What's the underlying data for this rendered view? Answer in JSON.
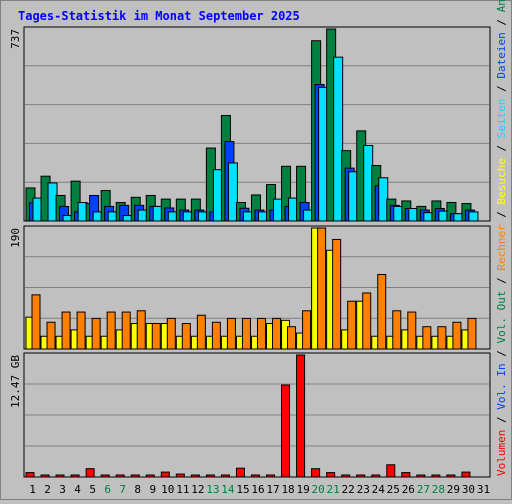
{
  "chart_data": [
    {
      "type": "bar",
      "title": "Tages-Statistik im Monat September 2025",
      "ymax_label": "737",
      "ylim": [
        0,
        737
      ],
      "categories": [
        "1",
        "2",
        "3",
        "4",
        "5",
        "6",
        "7",
        "8",
        "9",
        "10",
        "11",
        "12",
        "13",
        "14",
        "15",
        "16",
        "17",
        "18",
        "19",
        "20",
        "21",
        "22",
        "23",
        "24",
        "25",
        "26",
        "27",
        "28",
        "29",
        "30",
        "31"
      ],
      "weekend_days": [
        "6",
        "7",
        "13",
        "14",
        "20",
        "21",
        "27",
        "28"
      ],
      "legend": [
        "Anfragen",
        "Dateien",
        "Seiten"
      ],
      "series": [
        {
          "name": "Anfragen",
          "color": "#008040",
          "values": [
            127,
            172,
            98,
            153,
            67,
            117,
            71,
            91,
            98,
            84,
            84,
            84,
            280,
            405,
            71,
            100,
            140,
            210,
            210,
            692,
            737,
            270,
            346,
            213,
            84,
            77,
            56,
            77,
            71,
            67,
            0
          ]
        },
        {
          "name": "Dateien",
          "color": "#0040ff",
          "values": [
            70,
            0,
            56,
            35,
            98,
            56,
            60,
            60,
            56,
            50,
            42,
            42,
            35,
            305,
            49,
            42,
            42,
            56,
            71,
            524,
            0,
            203,
            0,
            135,
            60,
            48,
            42,
            48,
            28,
            42,
            0
          ]
        },
        {
          "name": "Seiten",
          "color": "#00e0ff",
          "values": [
            88,
            146,
            21,
            71,
            35,
            35,
            21,
            42,
            56,
            35,
            35,
            35,
            197,
            223,
            35,
            35,
            84,
            88,
            42,
            513,
            629,
            189,
            290,
            166,
            56,
            48,
            32,
            38,
            28,
            35,
            0
          ]
        }
      ]
    },
    {
      "type": "bar",
      "ymax_label": "190",
      "ylim": [
        0,
        190
      ],
      "categories": [
        "1",
        "2",
        "3",
        "4",
        "5",
        "6",
        "7",
        "8",
        "9",
        "10",
        "11",
        "12",
        "13",
        "14",
        "15",
        "16",
        "17",
        "18",
        "19",
        "20",
        "21",
        "22",
        "23",
        "24",
        "25",
        "26",
        "27",
        "28",
        "29",
        "30",
        "31"
      ],
      "legend": [
        "Besuche",
        "Rechner"
      ],
      "series": [
        {
          "name": "Besuche",
          "color": "#ffff00",
          "values": [
            50,
            20,
            20,
            30,
            20,
            20,
            30,
            40,
            40,
            40,
            20,
            20,
            20,
            20,
            20,
            20,
            40,
            45,
            25,
            190,
            155,
            30,
            75,
            20,
            20,
            30,
            20,
            20,
            20,
            30,
            0
          ]
        },
        {
          "name": "Rechner",
          "color": "#ff8000",
          "values": [
            85,
            42,
            58,
            58,
            48,
            58,
            58,
            60,
            40,
            48,
            40,
            53,
            42,
            48,
            48,
            48,
            48,
            35,
            60,
            190,
            172,
            75,
            88,
            117,
            60,
            58,
            35,
            35,
            42,
            48,
            0
          ]
        }
      ]
    },
    {
      "type": "bar",
      "ymax_label": "12.47 GB",
      "ylim": [
        0,
        12.47
      ],
      "categories": [
        "1",
        "2",
        "3",
        "4",
        "5",
        "6",
        "7",
        "8",
        "9",
        "10",
        "11",
        "12",
        "13",
        "14",
        "15",
        "16",
        "17",
        "18",
        "19",
        "20",
        "21",
        "22",
        "23",
        "24",
        "25",
        "26",
        "27",
        "28",
        "29",
        "30",
        "31"
      ],
      "legend": [
        "Volumen",
        "Vol. In",
        "Vol. Out"
      ],
      "series": [
        {
          "name": "Volumen",
          "color": "#ff0000",
          "values": [
            0.45,
            0.05,
            0.05,
            0.05,
            0.85,
            0.05,
            0.05,
            0.2,
            0.05,
            0.5,
            0.3,
            0.05,
            0.05,
            0.05,
            0.9,
            0.05,
            0.05,
            9.4,
            12.47,
            0.85,
            0.45,
            0.05,
            0.05,
            0.05,
            1.25,
            0.45,
            0.05,
            0.05,
            0.05,
            0.5,
            0.0
          ]
        },
        {
          "name": "Vol. In",
          "color": "#0040ff",
          "values": [
            0,
            0,
            0,
            0,
            0,
            0,
            0,
            0,
            0,
            0,
            0,
            0,
            0,
            0,
            0,
            0,
            0,
            0,
            0,
            0,
            0,
            0,
            0,
            0,
            0,
            0,
            0,
            0,
            0,
            0,
            0
          ]
        },
        {
          "name": "Vol. Out",
          "color": "#008040",
          "values": [
            0,
            0,
            0,
            0,
            0,
            0,
            0,
            0,
            0,
            0,
            0,
            0,
            0,
            0,
            0,
            0,
            0,
            0,
            0,
            0,
            0,
            0,
            0,
            0,
            0,
            0,
            0,
            0,
            0,
            0,
            0
          ]
        }
      ]
    }
  ]
}
